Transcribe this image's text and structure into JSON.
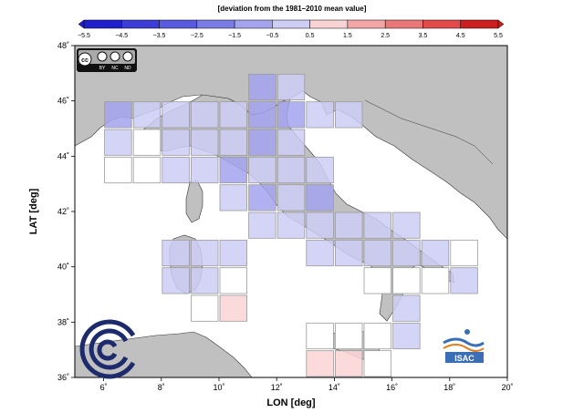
{
  "colorbar": {
    "title": "[deviation from the 1981–2010 mean value]",
    "ticks": [
      "−5.5",
      "−4.5",
      "−3.5",
      "−2.5",
      "−1.5",
      "−0.5",
      "0.5",
      "1.5",
      "2.5",
      "3.5",
      "4.5",
      "5.5"
    ],
    "colors": [
      "#1f1fcc",
      "#3c3cd6",
      "#5a5ade",
      "#7b7be6",
      "#a3a3ee",
      "#cdcdf6",
      "#ffffff",
      "#f9d3d3",
      "#f2a6a6",
      "#ea7777",
      "#e24a4a",
      "#cc1f1f"
    ]
  },
  "map": {
    "x_label": "LON [deg]",
    "y_label": "LAT [deg]",
    "x_ticks": [
      "6˚",
      "8˚",
      "10˚",
      "12˚",
      "14˚",
      "16˚",
      "18˚",
      "20˚"
    ],
    "y_ticks": [
      "36˚",
      "38˚",
      "40˚",
      "42˚",
      "44˚",
      "46˚",
      "48˚"
    ],
    "lon_range": [
      5,
      20
    ],
    "lat_range": [
      36,
      48
    ],
    "land_color": "#c0c0c0",
    "sea_color": "#ffffff"
  },
  "license": {
    "cc": "cc",
    "by": "BY",
    "nc": "NC",
    "nd": "ND"
  },
  "logos": {
    "isac_text": "ISAC"
  },
  "grid_cells": [
    {
      "lon": 11.5,
      "lat": 46.5,
      "v": -1.6
    },
    {
      "lon": 12.5,
      "lat": 46.5,
      "v": -1.2
    },
    {
      "lon": 6.5,
      "lat": 45.5,
      "v": -1.9
    },
    {
      "lon": 7.5,
      "lat": 45.5,
      "v": -1.4
    },
    {
      "lon": 8.5,
      "lat": 45.5,
      "v": -1.1
    },
    {
      "lon": 9.5,
      "lat": 45.5,
      "v": -0.8
    },
    {
      "lon": 10.5,
      "lat": 45.5,
      "v": -0.9
    },
    {
      "lon": 11.5,
      "lat": 45.5,
      "v": -2.1
    },
    {
      "lon": 12.5,
      "lat": 45.5,
      "v": -1.6
    },
    {
      "lon": 13.5,
      "lat": 45.5,
      "v": -0.9
    },
    {
      "lon": 14.5,
      "lat": 45.5,
      "v": -0.7
    },
    {
      "lon": 6.5,
      "lat": 44.5,
      "v": -0.9
    },
    {
      "lon": 7.5,
      "lat": 44.5,
      "v": 0.0
    },
    {
      "lon": 8.5,
      "lat": 44.5,
      "v": -1.2
    },
    {
      "lon": 9.5,
      "lat": 44.5,
      "v": -1.1
    },
    {
      "lon": 10.5,
      "lat": 44.5,
      "v": -1.0
    },
    {
      "lon": 11.5,
      "lat": 44.5,
      "v": -2.2
    },
    {
      "lon": 12.5,
      "lat": 44.5,
      "v": -1.0
    },
    {
      "lon": 6.5,
      "lat": 43.5,
      "v": 0.0
    },
    {
      "lon": 7.5,
      "lat": 43.5,
      "v": 0.0
    },
    {
      "lon": 8.5,
      "lat": 43.5,
      "v": -1.0
    },
    {
      "lon": 9.5,
      "lat": 43.5,
      "v": -1.4
    },
    {
      "lon": 10.5,
      "lat": 43.5,
      "v": -2.3
    },
    {
      "lon": 11.5,
      "lat": 43.5,
      "v": -1.3
    },
    {
      "lon": 12.5,
      "lat": 43.5,
      "v": -1.3
    },
    {
      "lon": 13.5,
      "lat": 43.5,
      "v": -1.2
    },
    {
      "lon": 10.5,
      "lat": 42.5,
      "v": -1.0
    },
    {
      "lon": 11.5,
      "lat": 42.5,
      "v": -2.0
    },
    {
      "lon": 12.5,
      "lat": 42.5,
      "v": -1.4
    },
    {
      "lon": 13.5,
      "lat": 42.5,
      "v": -2.4
    },
    {
      "lon": 11.5,
      "lat": 41.5,
      "v": -1.2
    },
    {
      "lon": 12.5,
      "lat": 41.5,
      "v": -1.3
    },
    {
      "lon": 13.5,
      "lat": 41.5,
      "v": -1.0
    },
    {
      "lon": 14.5,
      "lat": 41.5,
      "v": -1.1
    },
    {
      "lon": 15.5,
      "lat": 41.5,
      "v": -1.3
    },
    {
      "lon": 16.5,
      "lat": 41.5,
      "v": -1.1
    },
    {
      "lon": 8.5,
      "lat": 40.5,
      "v": -1.3
    },
    {
      "lon": 9.5,
      "lat": 40.5,
      "v": -0.7
    },
    {
      "lon": 10.5,
      "lat": 40.5,
      "v": -1.1
    },
    {
      "lon": 13.5,
      "lat": 40.5,
      "v": -1.1
    },
    {
      "lon": 14.5,
      "lat": 40.5,
      "v": -1.0
    },
    {
      "lon": 15.5,
      "lat": 40.5,
      "v": -1.2
    },
    {
      "lon": 16.5,
      "lat": 40.5,
      "v": -0.8
    },
    {
      "lon": 17.5,
      "lat": 40.5,
      "v": -1.1
    },
    {
      "lon": 18.5,
      "lat": 40.5,
      "v": 0.0
    },
    {
      "lon": 8.5,
      "lat": 39.5,
      "v": -1.4
    },
    {
      "lon": 9.5,
      "lat": 39.5,
      "v": -1.1
    },
    {
      "lon": 10.5,
      "lat": 39.5,
      "v": 0.0
    },
    {
      "lon": 15.5,
      "lat": 39.5,
      "v": 0.0
    },
    {
      "lon": 16.5,
      "lat": 39.5,
      "v": 0.0
    },
    {
      "lon": 17.5,
      "lat": 39.5,
      "v": 0.0
    },
    {
      "lon": 18.5,
      "lat": 39.5,
      "v": -1.2
    },
    {
      "lon": 9.5,
      "lat": 38.5,
      "v": 0.0
    },
    {
      "lon": 10.5,
      "lat": 38.5,
      "v": 1.2
    },
    {
      "lon": 16.5,
      "lat": 38.5,
      "v": -1.1
    },
    {
      "lon": 16.5,
      "lat": 37.5,
      "v": -1.2
    },
    {
      "lon": 13.5,
      "lat": 37.5,
      "v": 0.0
    },
    {
      "lon": 14.5,
      "lat": 37.5,
      "v": 0.0
    },
    {
      "lon": 15.5,
      "lat": 37.5,
      "v": 0.0
    },
    {
      "lon": 13.5,
      "lat": 36.5,
      "v": 1.1
    },
    {
      "lon": 14.5,
      "lat": 36.5,
      "v": 1.3
    },
    {
      "lon": 15.5,
      "lat": 36.5,
      "v": 0.0
    }
  ]
}
